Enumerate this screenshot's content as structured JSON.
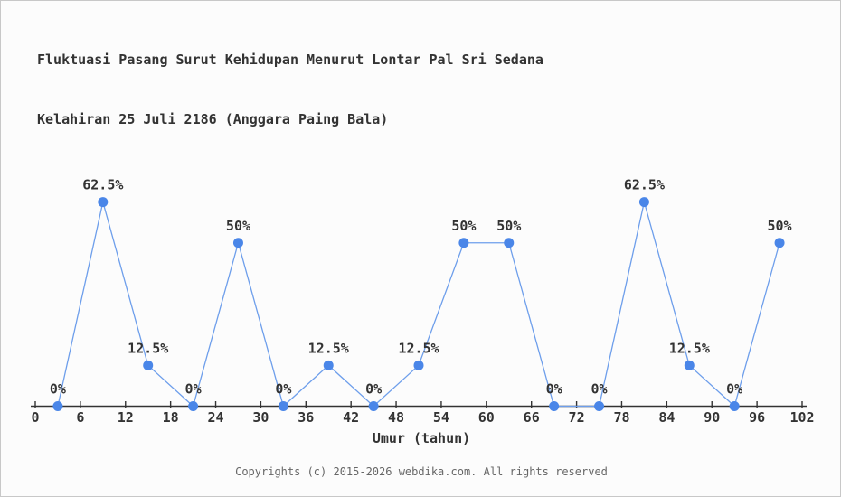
{
  "title": {
    "line1": "Fluktuasi Pasang Surut Kehidupan Menurut Lontar Pal Sri Sedana",
    "line2": "Kelahiran 25 Juli 2186 (Anggara Paing Bala)"
  },
  "footer": {
    "copyright": "Copyrights (c) 2015-2026 webdika.com. All rights reserved"
  },
  "chart_data": {
    "type": "line",
    "title": "Fluktuasi Pasang Surut Kehidupan Menurut Lontar Pal Sri Sedana Kelahiran 25 Juli 2186 (Anggara Paing Bala)",
    "x": [
      3,
      9,
      15,
      21,
      27,
      33,
      39,
      45,
      51,
      57,
      63,
      69,
      75,
      81,
      87,
      93,
      99
    ],
    "values": [
      0,
      62.5,
      12.5,
      0,
      50,
      0,
      12.5,
      0,
      12.5,
      50,
      50,
      0,
      0,
      62.5,
      12.5,
      0,
      50
    ],
    "point_labels": [
      "0%",
      "62.5%",
      "12.5%",
      "0%",
      "50%",
      "0%",
      "12.5%",
      "0%",
      "12.5%",
      "50%",
      "50%",
      "0%",
      "0%",
      "62.5%",
      "12.5%",
      "0%",
      "50%"
    ],
    "xlabel": "Umur (tahun)",
    "ylabel": "",
    "x_ticks": [
      0,
      6,
      12,
      18,
      24,
      30,
      36,
      42,
      48,
      54,
      60,
      66,
      72,
      78,
      84,
      90,
      96,
      102
    ],
    "xlim": [
      0,
      102
    ],
    "ylim": [
      0,
      100
    ],
    "grid": false,
    "legend": "none",
    "colors": {
      "line": "#6d9eeb",
      "marker": "#4a86e8",
      "axis": "#333333",
      "label": "#333333"
    }
  }
}
